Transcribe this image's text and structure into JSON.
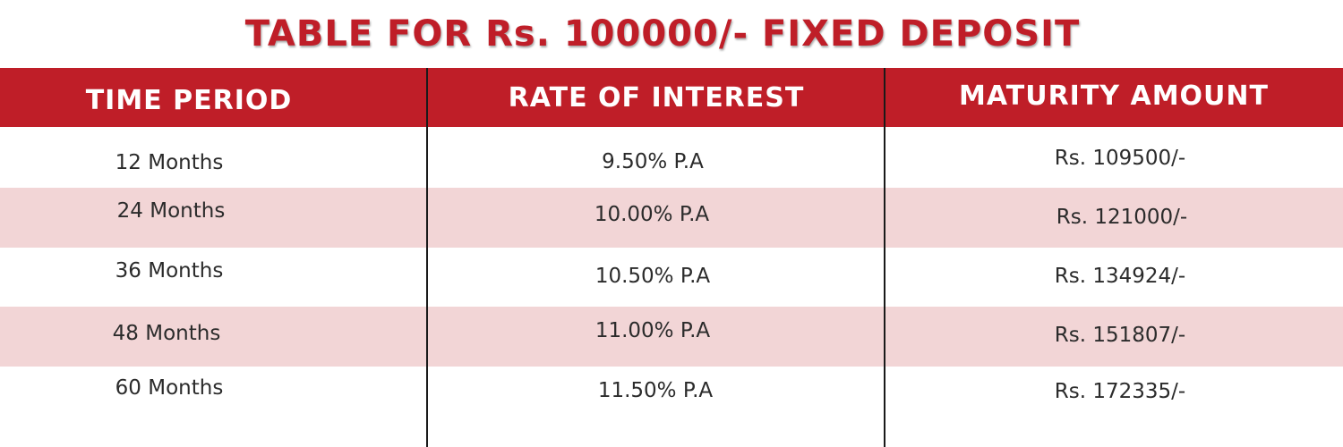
{
  "title": "TABLE FOR Rs. 100000/- FIXED DEPOSIT",
  "colors": {
    "header_bg": "#bf1e28",
    "header_text": "#ffffff",
    "title_text": "#bf1e28",
    "alt_row_bg": "#f2d5d6",
    "body_text": "#2b2b2b"
  },
  "columns": [
    "TIME PERIOD",
    "RATE OF INTEREST",
    "MATURITY AMOUNT"
  ],
  "rows": [
    {
      "period": "12 Months",
      "rate": "9.50% P.A",
      "amount": "Rs. 109500/-"
    },
    {
      "period": "24 Months",
      "rate": "10.00% P.A",
      "amount": "Rs. 121000/-"
    },
    {
      "period": "36 Months",
      "rate": "10.50% P.A",
      "amount": "Rs. 134924/-"
    },
    {
      "period": "48 Months",
      "rate": "11.00% P.A",
      "amount": "Rs. 151807/-"
    },
    {
      "period": "60 Months",
      "rate": "11.50% P.A",
      "amount": "Rs. 172335/-"
    }
  ]
}
